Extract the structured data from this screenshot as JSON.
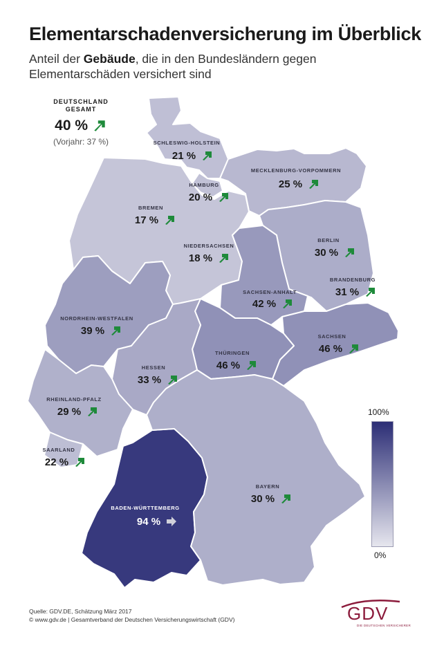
{
  "header": {
    "title": "Elementarschadenversicherung im Überblick",
    "subtitle_pre": "Anteil der ",
    "subtitle_bold": "Gebäude",
    "subtitle_post": ", die in den Bundesländern gegen Elementarschäden versichert sind"
  },
  "national": {
    "label_line1": "DEUTSCHLAND",
    "label_line2": "GESAMT",
    "value": "40 %",
    "previous": "(Vorjahr: 37 %)",
    "trend": "up"
  },
  "colors": {
    "max": "#2c2e76",
    "min": "#e6e6ee",
    "border": "#ffffff",
    "arrow_up": "#1e8a3a",
    "arrow_flat": "#d0d0da"
  },
  "states": [
    {
      "name": "SCHLESWIG-HOLSTEIN",
      "value": "21 %",
      "pct": 21,
      "trend": "up"
    },
    {
      "name": "MECKLENBURG-VORPOMMERN",
      "value": "25 %",
      "pct": 25,
      "trend": "up"
    },
    {
      "name": "HAMBURG",
      "value": "20 %",
      "pct": 20,
      "trend": "up"
    },
    {
      "name": "BREMEN",
      "value": "17 %",
      "pct": 17,
      "trend": "up"
    },
    {
      "name": "NIEDERSACHSEN",
      "value": "18 %",
      "pct": 18,
      "trend": "up"
    },
    {
      "name": "BERLIN",
      "value": "30 %",
      "pct": 30,
      "trend": "up"
    },
    {
      "name": "BRANDENBURG",
      "value": "31 %",
      "pct": 31,
      "trend": "up"
    },
    {
      "name": "SACHSEN-ANHALT",
      "value": "42 %",
      "pct": 42,
      "trend": "up"
    },
    {
      "name": "NORDRHEIN-WESTFALEN",
      "value": "39 %",
      "pct": 39,
      "trend": "up"
    },
    {
      "name": "SACHSEN",
      "value": "46 %",
      "pct": 46,
      "trend": "up"
    },
    {
      "name": "THÜRINGEN",
      "value": "46 %",
      "pct": 46,
      "trend": "up"
    },
    {
      "name": "HESSEN",
      "value": "33 %",
      "pct": 33,
      "trend": "up"
    },
    {
      "name": "RHEINLAND-PFALZ",
      "value": "29 %",
      "pct": 29,
      "trend": "up"
    },
    {
      "name": "SAARLAND",
      "value": "22 %",
      "pct": 22,
      "trend": "up"
    },
    {
      "name": "BADEN-WÜRTTEMBERG",
      "value": "94 %",
      "pct": 94,
      "trend": "flat"
    },
    {
      "name": "BAYERN",
      "value": "30 %",
      "pct": 30,
      "trend": "up"
    }
  ],
  "legend": {
    "max_label": "100%",
    "min_label": "0%"
  },
  "footer": {
    "source": "Quelle: GDV.DE, Schätzung März 2017",
    "copyright": "© www.gdv.de | Gesamtverband der Deutschen Versicherungswirtschaft (GDV)"
  },
  "logo": {
    "text": "GDV",
    "tagline": "DIE DEUTSCHEN VERSICHERER"
  }
}
